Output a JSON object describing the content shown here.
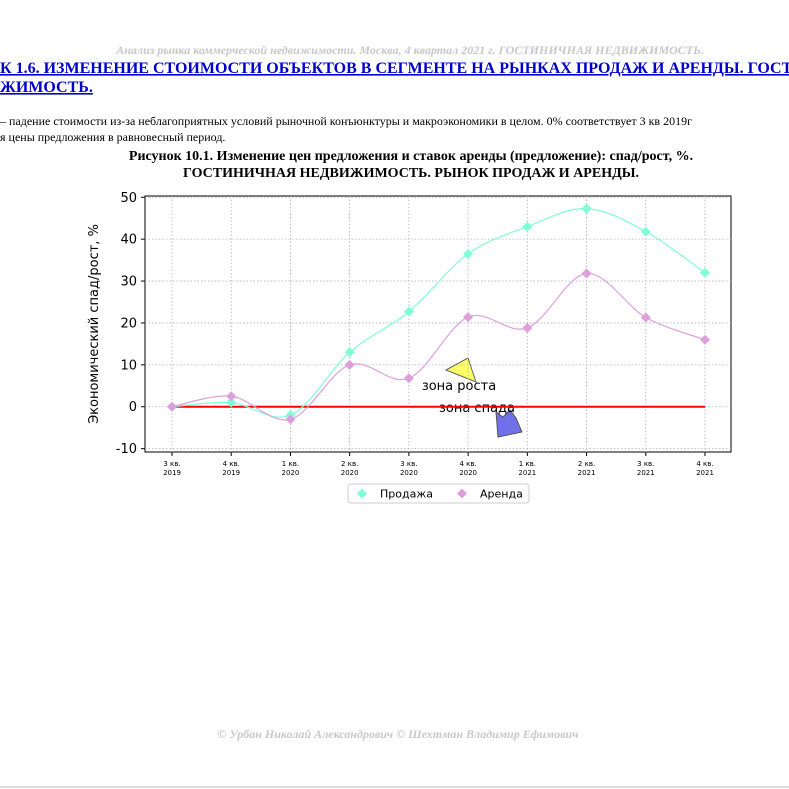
{
  "header": {
    "title": "Анализ рынка коммерческой недвижимости.  Москва, 4 квартал 2021 г.  ГОСТИНИЧНАЯ НЕДВИЖИМОСТЬ."
  },
  "heading": {
    "lines": [
      "К 1.6. ИЗМЕНЕНИЕ СТОИМОСТИ ОБЪЕКТОВ В СЕГМЕНТЕ НА РЫНКАХ ПРОДАЖ И АРЕНДЫ. ГОСТ",
      "ЖИМОСТЬ."
    ]
  },
  "paragraph": {
    "lines": [
      "– падение стоимости из-за неблагоприятных условий рыночной конъюнктуры и макроэкономики в целом. 0% соответствует 3 кв 2019г",
      "я цены предложения в равновесный период."
    ]
  },
  "figure": {
    "caption": [
      "Рисунок 10.1. Изменение цен предложения и ставок аренды (предложение): спад/рост, %.",
      "ГОСТИНИЧНАЯ НЕДВИЖИМОСТЬ. РЫНОК ПРОДАЖ И АРЕНДЫ."
    ]
  },
  "chart_data": {
    "type": "line",
    "y_label": "Экономический спад/рост, %",
    "categories": [
      [
        "3 кв.",
        "2019"
      ],
      [
        "4 кв.",
        "2019"
      ],
      [
        "1 кв.",
        "2020"
      ],
      [
        "2 кв.",
        "2020"
      ],
      [
        "3 кв.",
        "2020"
      ],
      [
        "4 кв.",
        "2020"
      ],
      [
        "1 кв.",
        "2021"
      ],
      [
        "2 кв.",
        "2021"
      ],
      [
        "3 кв.",
        "2021"
      ],
      [
        "4 кв.",
        "2021"
      ]
    ],
    "series": [
      {
        "name": "Продажа",
        "color": "#7fffd4",
        "values": [
          0,
          1,
          -2,
          13,
          22.7,
          36.5,
          43,
          47.3,
          41.8,
          32
        ]
      },
      {
        "name": "Аренда",
        "color": "#dda0dd",
        "values": [
          0,
          2.5,
          -3,
          10,
          6.8,
          21.4,
          18.8,
          31.8,
          21.3,
          16
        ]
      }
    ],
    "ylim": [
      -10.8,
      50.3
    ],
    "yticks": [
      -10,
      0,
      10,
      20,
      30,
      40,
      50
    ],
    "grid": true,
    "smooth": true,
    "zero_line_color": "#ff0000",
    "legend": "bottom",
    "annotations": [
      "зона роста",
      "зона спада"
    ]
  },
  "footer": {
    "text": "© Урбан Николай Александрович   © Шехтман Владимир Ефимович"
  }
}
